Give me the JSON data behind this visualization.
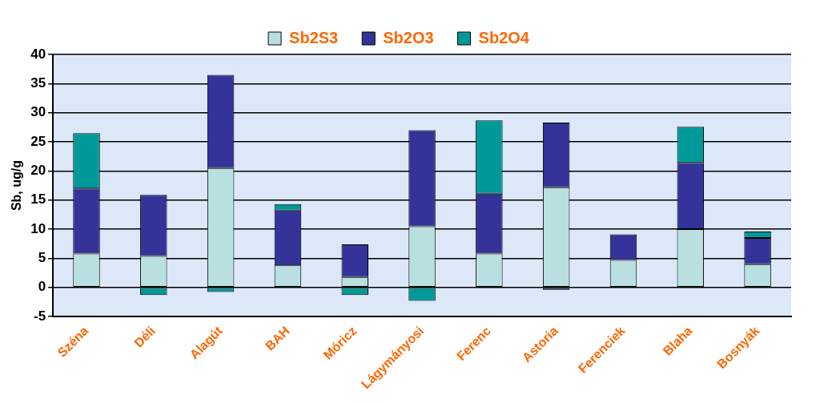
{
  "chart_data": {
    "type": "bar",
    "stacked": true,
    "ylabel": "Sb, ug/g",
    "categories": [
      "Széna",
      "Déli",
      "Alagút",
      "BAH",
      "Móricz",
      "Lágymányosi",
      "Ferenc",
      "Astoria",
      "Ferenciek",
      "Blaha",
      "Bosnyák"
    ],
    "series": [
      {
        "name": "Sb2S3",
        "color": "#b9dfe0",
        "values": [
          5.8,
          5.4,
          20.5,
          3.8,
          1.8,
          10.5,
          5.8,
          17.2,
          4.7,
          10,
          4
        ]
      },
      {
        "name": "Sb2O3",
        "color": "#333399",
        "values": [
          11.2,
          10.5,
          16,
          9.4,
          5.6,
          16.5,
          10.3,
          11.1,
          4.4,
          11.4,
          4.5
        ]
      },
      {
        "name": "Sb2O4",
        "color": "#009999",
        "values": [
          9.5,
          -1.3,
          -0.8,
          1.1,
          -1.3,
          -2.3,
          12.6,
          -0.4,
          null,
          6.2,
          1.1
        ]
      }
    ],
    "ylim": [
      -5,
      40
    ],
    "yticks": [
      -5,
      0,
      5,
      10,
      15,
      20,
      25,
      30,
      35,
      40
    ],
    "grid": "y",
    "legend": "top"
  }
}
